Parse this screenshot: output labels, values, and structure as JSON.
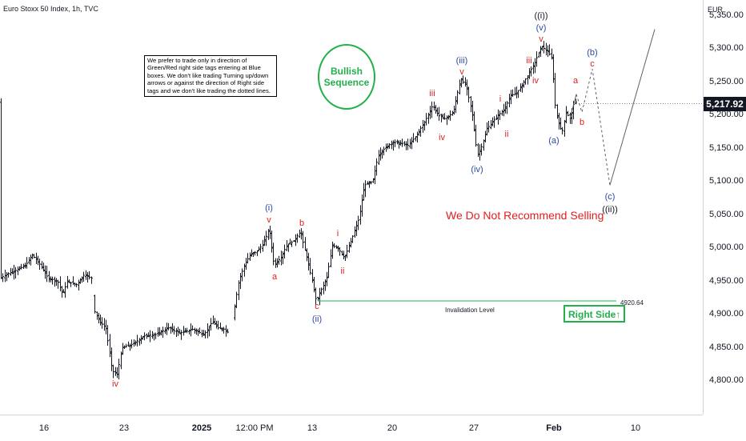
{
  "header": {
    "title": "Euro Stoxx 50 Index, 1h, TVC",
    "currency": "EUR"
  },
  "price_axis": {
    "ticks": [
      "5,350.00",
      "5,300.00",
      "5,250.00",
      "5,200.00",
      "5,150.00",
      "5,100.00",
      "5,050.00",
      "5,000.00",
      "4,950.00",
      "4,900.00",
      "4,850.00",
      "4,800.00"
    ],
    "last_price": "5,217.92"
  },
  "time_axis": {
    "ticks": [
      {
        "label": "16",
        "bold": false
      },
      {
        "label": "23",
        "bold": false
      },
      {
        "label": "2025",
        "bold": true
      },
      {
        "label": "12:00 PM",
        "bold": false
      },
      {
        "label": "13",
        "bold": false
      },
      {
        "label": "20",
        "bold": false
      },
      {
        "label": "27",
        "bold": false
      },
      {
        "label": "Feb",
        "bold": true
      },
      {
        "label": "10",
        "bold": false
      }
    ]
  },
  "annotations": {
    "note": "We prefer to trade only in direction of Green/Red right side tags entering at Blue boxes. We don't like trading Turning up/down arrows or against the direction of Right side tags and we don't like trading the dotted lines.",
    "bullish_line1": "Bullish",
    "bullish_line2": "Sequence",
    "no_sell": "We Do Not Recommend Selling",
    "invalidation_label": "Invalidation Level",
    "invalidation_price": "4920.64",
    "right_side": "Right Side",
    "right_side_arrow": "↑"
  },
  "colors": {
    "candle": "#131722",
    "wave_red": "#e02020",
    "wave_blue": "#2b4aa8",
    "wave_black": "#131722",
    "accent_green": "#22b04a",
    "projection": "#5d606b"
  },
  "chart_data": {
    "type": "ohlc",
    "symbol": "Euro Stoxx 50 Index",
    "timeframe": "1h",
    "ylim": [
      4775,
      5365
    ],
    "y_ticks": [
      4800,
      4850,
      4900,
      4950,
      5000,
      5050,
      5100,
      5150,
      5200,
      5250,
      5300,
      5350
    ],
    "x_tick_labels": [
      "16",
      "23",
      "2025",
      "12:00 PM",
      "13",
      "20",
      "27",
      "Feb",
      "10"
    ],
    "last_price": 5217.92,
    "invalidation_level": 4920.64,
    "price_path": [
      [
        0,
        4955
      ],
      [
        10,
        4962
      ],
      [
        22,
        4968
      ],
      [
        32,
        4975
      ],
      [
        40,
        4990
      ],
      [
        50,
        4975
      ],
      [
        60,
        4955
      ],
      [
        72,
        4950
      ],
      [
        78,
        4930
      ],
      [
        84,
        4950
      ],
      [
        95,
        4945
      ],
      [
        105,
        4960
      ],
      [
        114,
        4955
      ],
      [
        118,
        4905
      ],
      [
        124,
        4890
      ],
      [
        132,
        4880
      ],
      [
        140,
        4815
      ],
      [
        146,
        4810
      ],
      [
        152,
        4850
      ],
      [
        165,
        4855
      ],
      [
        180,
        4868
      ],
      [
        195,
        4870
      ],
      [
        210,
        4880
      ],
      [
        225,
        4872
      ],
      [
        240,
        4878
      ],
      [
        255,
        4870
      ],
      [
        265,
        4890
      ],
      [
        272,
        4880
      ],
      [
        280,
        4878
      ],
      [
        287,
        4870
      ],
      [
        292,
        4905
      ],
      [
        298,
        4950
      ],
      [
        305,
        4975
      ],
      [
        312,
        4990
      ],
      [
        320,
        4995
      ],
      [
        328,
        5005
      ],
      [
        336,
        5030
      ],
      [
        342,
        4975
      ],
      [
        350,
        4985
      ],
      [
        358,
        5005
      ],
      [
        366,
        5010
      ],
      [
        375,
        5025
      ],
      [
        383,
        4985
      ],
      [
        390,
        4950
      ],
      [
        395,
        4920
      ],
      [
        400,
        4935
      ],
      [
        408,
        4955
      ],
      [
        415,
        5005
      ],
      [
        422,
        5000
      ],
      [
        430,
        4985
      ],
      [
        438,
        5010
      ],
      [
        448,
        5045
      ],
      [
        455,
        5095
      ],
      [
        465,
        5100
      ],
      [
        472,
        5140
      ],
      [
        480,
        5150
      ],
      [
        490,
        5160
      ],
      [
        500,
        5158
      ],
      [
        510,
        5155
      ],
      [
        520,
        5170
      ],
      [
        530,
        5190
      ],
      [
        540,
        5215
      ],
      [
        548,
        5200
      ],
      [
        556,
        5195
      ],
      [
        566,
        5205
      ],
      [
        575,
        5255
      ],
      [
        582,
        5245
      ],
      [
        590,
        5200
      ],
      [
        596,
        5140
      ],
      [
        602,
        5155
      ],
      [
        608,
        5180
      ],
      [
        615,
        5190
      ],
      [
        622,
        5200
      ],
      [
        630,
        5210
      ],
      [
        638,
        5230
      ],
      [
        646,
        5235
      ],
      [
        654,
        5250
      ],
      [
        660,
        5262
      ],
      [
        668,
        5280
      ],
      [
        676,
        5305
      ],
      [
        685,
        5295
      ],
      [
        690,
        5285
      ],
      [
        692,
        5225
      ],
      [
        697,
        5190
      ],
      [
        702,
        5175
      ],
      [
        707,
        5205
      ],
      [
        712,
        5195
      ],
      [
        717,
        5220
      ],
      [
        720,
        5220
      ]
    ],
    "projection": {
      "solid_up": [
        [
          712,
          5195
        ],
        [
          720,
          5232
        ]
      ],
      "dashed": [
        [
          720,
          5232
        ],
        [
          727,
          5205
        ],
        [
          740,
          5270
        ],
        [
          762,
          5095
        ]
      ],
      "final_up": [
        [
          762,
          5095
        ],
        [
          818,
          5330
        ]
      ]
    },
    "wave_labels": [
      {
        "text": "iv",
        "x": 144,
        "y": 4795,
        "color": "red"
      },
      {
        "text": "(i)",
        "x": 336,
        "y": 5060,
        "color": "blue"
      },
      {
        "text": "v",
        "x": 336,
        "y": 5043,
        "color": "red"
      },
      {
        "text": "a",
        "x": 343,
        "y": 4957,
        "color": "red"
      },
      {
        "text": "b",
        "x": 377,
        "y": 5038,
        "color": "red"
      },
      {
        "text": "c",
        "x": 396,
        "y": 4912,
        "color": "red"
      },
      {
        "text": "(ii)",
        "x": 396,
        "y": 4893,
        "color": "blue"
      },
      {
        "text": "i",
        "x": 422,
        "y": 5022,
        "color": "red"
      },
      {
        "text": "ii",
        "x": 428,
        "y": 4965,
        "color": "red"
      },
      {
        "text": "iii",
        "x": 540,
        "y": 5233,
        "color": "red"
      },
      {
        "text": "iv",
        "x": 552,
        "y": 5167,
        "color": "red"
      },
      {
        "text": "(iii)",
        "x": 577,
        "y": 5283,
        "color": "blue"
      },
      {
        "text": "v",
        "x": 577,
        "y": 5265,
        "color": "red"
      },
      {
        "text": "(iv)",
        "x": 596,
        "y": 5118,
        "color": "blue"
      },
      {
        "text": "i",
        "x": 625,
        "y": 5225,
        "color": "red"
      },
      {
        "text": "ii",
        "x": 633,
        "y": 5172,
        "color": "red"
      },
      {
        "text": "iii",
        "x": 661,
        "y": 5282,
        "color": "red"
      },
      {
        "text": "iv",
        "x": 669,
        "y": 5252,
        "color": "red"
      },
      {
        "text": "((i))",
        "x": 676,
        "y": 5350,
        "color": "black"
      },
      {
        "text": "(v)",
        "x": 676,
        "y": 5332,
        "color": "blue"
      },
      {
        "text": "v",
        "x": 676,
        "y": 5315,
        "color": "red"
      },
      {
        "text": "(a)",
        "x": 692,
        "y": 5162,
        "color": "blue"
      },
      {
        "text": "a",
        "x": 719,
        "y": 5252,
        "color": "red"
      },
      {
        "text": "b",
        "x": 727,
        "y": 5190,
        "color": "red"
      },
      {
        "text": "(b)",
        "x": 740,
        "y": 5295,
        "color": "blue"
      },
      {
        "text": "c",
        "x": 740,
        "y": 5278,
        "color": "red"
      },
      {
        "text": "(c)",
        "x": 762,
        "y": 5078,
        "color": "blue"
      },
      {
        "text": "((ii))",
        "x": 762,
        "y": 5058,
        "color": "black"
      }
    ]
  }
}
